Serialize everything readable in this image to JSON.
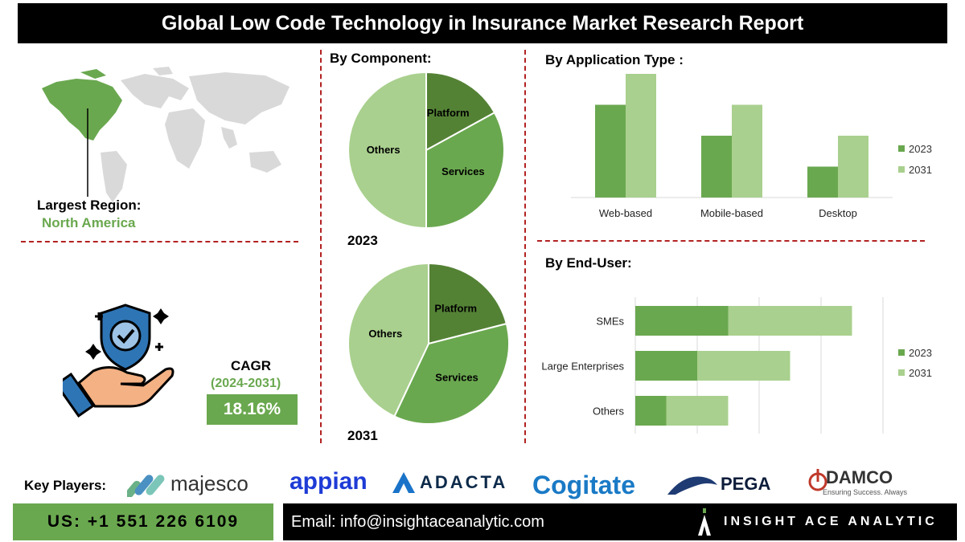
{
  "title": "Global  Low Code Technology in Insurance Market Research Report",
  "region": {
    "label": "Largest Region:",
    "value": "North America"
  },
  "cagr": {
    "label": "CAGR",
    "period": "(2024-2031)",
    "value": "18.16%"
  },
  "key_players_label": "Key Players:",
  "players": [
    "majesco",
    "appian",
    "ADACTA",
    "Cogitate",
    "PEGA",
    "DAMCO"
  ],
  "damco_tagline": "Ensuring Success. Always",
  "contact": {
    "phone": "US: +1 551 226 6109",
    "email": "Email: info@insightaceanalytic.com",
    "brand": "INSIGHT ACE ANALYTIC"
  },
  "colors": {
    "dark_green": "#548235",
    "mid_green": "#6aa84f",
    "light_green": "#a9d08e",
    "divider": "#b22222"
  },
  "chart_data": [
    {
      "type": "pie",
      "title": "By Component:",
      "caption": "2023",
      "slices": [
        {
          "label": "Platform",
          "value": 17
        },
        {
          "label": "Services",
          "value": 33
        },
        {
          "label": "Others",
          "value": 50
        }
      ]
    },
    {
      "type": "pie",
      "caption": "2031",
      "slices": [
        {
          "label": "Platform",
          "value": 21
        },
        {
          "label": "Services",
          "value": 36
        },
        {
          "label": "Others",
          "value": 43
        }
      ]
    },
    {
      "type": "bar",
      "title": "By  Application Type :",
      "categories": [
        "Web-based",
        "Mobile-based",
        "Desktop"
      ],
      "series": [
        {
          "name": "2023",
          "values": [
            3,
            2,
            1
          ]
        },
        {
          "name": "2031",
          "values": [
            4,
            3,
            2
          ]
        }
      ],
      "legend": "right"
    },
    {
      "type": "bar",
      "orientation": "horizontal",
      "stacked": true,
      "title": "By End-User:",
      "categories": [
        "SMEs",
        "Large Enterprises",
        "Others"
      ],
      "series": [
        {
          "name": "2023",
          "values": [
            1.5,
            1.0,
            0.5
          ]
        },
        {
          "name": "2031",
          "values": [
            2.0,
            1.5,
            1.0
          ]
        }
      ],
      "legend": "right"
    }
  ]
}
